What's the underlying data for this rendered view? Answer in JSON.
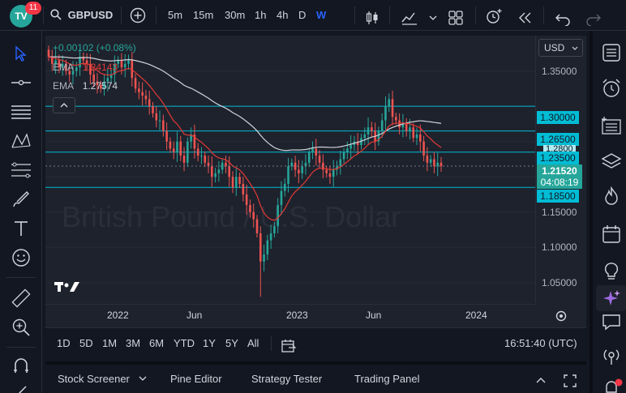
{
  "app": {
    "badge_count": "11",
    "logo_text": "TV"
  },
  "toolbar": {
    "symbol": "GBPUSD",
    "intervals": [
      "5m",
      "15m",
      "30m",
      "1h",
      "4h",
      "D",
      "W"
    ],
    "active_interval": "W"
  },
  "legend": {
    "change": "+0.00102 (+0.08%)",
    "ema1_label": "EMA",
    "ema1_value": "1.24143",
    "ema2_label": "EMA",
    "ema2_value": "1.27574"
  },
  "watermark": "British Pound / U.S. Dollar",
  "price_axis": {
    "currency": "USD",
    "ticks": [
      "1.35000",
      "1.30000",
      "1.26500",
      "1.23500",
      "1.21520",
      "1.18500",
      "1.15000",
      "1.10000",
      "1.05000"
    ],
    "plain_ticks": [
      "1.35000",
      "1.15000",
      "1.10000",
      "1.05000"
    ],
    "level_badges": [
      "1.30000",
      "1.26500",
      "1.23500",
      "1.18500"
    ],
    "current_price": "1.21520",
    "countdown": "04:08:19",
    "partial_label": "1.2800"
  },
  "time_axis": [
    "2022",
    "Jun",
    "2023",
    "Jun",
    "2024"
  ],
  "ranges": [
    "1D",
    "5D",
    "1M",
    "3M",
    "6M",
    "YTD",
    "1Y",
    "5Y",
    "All"
  ],
  "clock": "16:51:40 (UTC)",
  "bottom_tabs": [
    "Stock Screener",
    "Pine Editor",
    "Strategy Tester",
    "Trading Panel"
  ],
  "colors": {
    "up": "#26a69a",
    "down": "#ef5350",
    "ema_fast": "#e53935",
    "ema_slow": "#d1d4dc",
    "level": "#00bcd4",
    "accent": "#2962ff",
    "bg": "#1e222d"
  },
  "icons": {
    "left": [
      "cursor-icon",
      "crosshair-line-icon",
      "horizontal-lines-icon",
      "pattern-icon",
      "fib-icon",
      "brush-icon",
      "text-icon",
      "emoji-icon",
      "ruler-icon",
      "zoom-in-icon",
      "magnet-icon"
    ],
    "right": [
      "watchlist-icon",
      "alarm-icon",
      "news-list-icon",
      "layers-icon",
      "hot-list-icon",
      "calendar-icon",
      "ideas-icon",
      "ai-sparkle-icon",
      "chat-icon",
      "stream-icon",
      "notifications-icon"
    ]
  },
  "chart_data": {
    "type": "candlestick",
    "symbol": "GBPUSD",
    "interval": "W",
    "ylim": [
      1.02,
      1.4
    ],
    "x_ticks": [
      "2022",
      "Jun",
      "2023",
      "Jun",
      "2024"
    ],
    "horizontal_levels": [
      1.3,
      1.265,
      1.235,
      1.185
    ],
    "current_price": 1.2152,
    "ema_fast_last": 1.24143,
    "ema_slow_last": 1.27574,
    "series_close": [
      1.37,
      1.36,
      1.365,
      1.355,
      1.36,
      1.35,
      1.345,
      1.35,
      1.355,
      1.37,
      1.365,
      1.36,
      1.345,
      1.335,
      1.33,
      1.325,
      1.335,
      1.34,
      1.345,
      1.36,
      1.365,
      1.355,
      1.36,
      1.365,
      1.34,
      1.325,
      1.32,
      1.315,
      1.31,
      1.3,
      1.29,
      1.28,
      1.28,
      1.265,
      1.25,
      1.24,
      1.235,
      1.25,
      1.23,
      1.22,
      1.25,
      1.26,
      1.24,
      1.23,
      1.23,
      1.22,
      1.215,
      1.2,
      1.205,
      1.21,
      1.22,
      1.215,
      1.2,
      1.185,
      1.2,
      1.19,
      1.175,
      1.16,
      1.15,
      1.14,
      1.12,
      1.08,
      1.09,
      1.11,
      1.12,
      1.13,
      1.16,
      1.18,
      1.19,
      1.215,
      1.22,
      1.21,
      1.205,
      1.215,
      1.22,
      1.235,
      1.24,
      1.23,
      1.22,
      1.21,
      1.205,
      1.2,
      1.21,
      1.215,
      1.225,
      1.235,
      1.24,
      1.245,
      1.25,
      1.245,
      1.255,
      1.26,
      1.27,
      1.265,
      1.25,
      1.265,
      1.28,
      1.3,
      1.31,
      1.285,
      1.28,
      1.27,
      1.275,
      1.265,
      1.27,
      1.255,
      1.26,
      1.25,
      1.23,
      1.22,
      1.225,
      1.215,
      1.22,
      1.2152
    ]
  }
}
